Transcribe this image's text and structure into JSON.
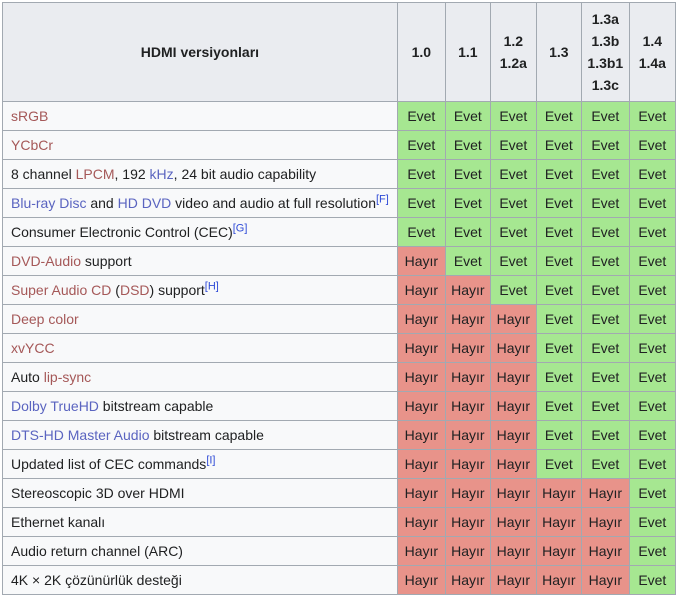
{
  "table": {
    "corner_header": "HDMI versiyonları",
    "version_columns": [
      {
        "lines": [
          "1.0"
        ]
      },
      {
        "lines": [
          "1.1"
        ]
      },
      {
        "lines": [
          "1.2",
          "1.2a"
        ]
      },
      {
        "lines": [
          "1.3"
        ]
      },
      {
        "lines": [
          "1.3a",
          "1.3b",
          "1.3b1",
          "1.3c"
        ]
      },
      {
        "lines": [
          "1.4",
          "1.4a"
        ]
      }
    ],
    "yes_label": "Evet",
    "no_label": "Hayır",
    "rows": [
      {
        "label_segments": [
          {
            "text": "sRGB",
            "style": "red-link"
          }
        ],
        "values": [
          "yes",
          "yes",
          "yes",
          "yes",
          "yes",
          "yes"
        ]
      },
      {
        "label_segments": [
          {
            "text": "YCbCr",
            "style": "red-link"
          }
        ],
        "values": [
          "yes",
          "yes",
          "yes",
          "yes",
          "yes",
          "yes"
        ]
      },
      {
        "label_segments": [
          {
            "text": "8 channel ",
            "style": "text"
          },
          {
            "text": "LPCM",
            "style": "red-link"
          },
          {
            "text": ", 192 ",
            "style": "text"
          },
          {
            "text": "kHz",
            "style": "blue-link"
          },
          {
            "text": ", 24 bit audio capability",
            "style": "text"
          }
        ],
        "values": [
          "yes",
          "yes",
          "yes",
          "yes",
          "yes",
          "yes"
        ]
      },
      {
        "label_segments": [
          {
            "text": "Blu-ray Disc",
            "style": "blue-link"
          },
          {
            "text": " and ",
            "style": "text"
          },
          {
            "text": "HD DVD",
            "style": "blue-link"
          },
          {
            "text": " video and audio at full resolution",
            "style": "text"
          },
          {
            "text": "[F]",
            "style": "ref"
          }
        ],
        "values": [
          "yes",
          "yes",
          "yes",
          "yes",
          "yes",
          "yes"
        ]
      },
      {
        "label_segments": [
          {
            "text": "Consumer Electronic Control (CEC)",
            "style": "text"
          },
          {
            "text": "[G]",
            "style": "ref"
          }
        ],
        "values": [
          "yes",
          "yes",
          "yes",
          "yes",
          "yes",
          "yes"
        ]
      },
      {
        "label_segments": [
          {
            "text": "DVD-Audio",
            "style": "red-link"
          },
          {
            "text": " support",
            "style": "text"
          }
        ],
        "values": [
          "no",
          "yes",
          "yes",
          "yes",
          "yes",
          "yes"
        ]
      },
      {
        "label_segments": [
          {
            "text": "Super Audio CD",
            "style": "red-link"
          },
          {
            "text": " (",
            "style": "text"
          },
          {
            "text": "DSD",
            "style": "red-link"
          },
          {
            "text": ") support",
            "style": "text"
          },
          {
            "text": "[H]",
            "style": "ref"
          }
        ],
        "values": [
          "no",
          "no",
          "yes",
          "yes",
          "yes",
          "yes"
        ]
      },
      {
        "label_segments": [
          {
            "text": "Deep color",
            "style": "red-link"
          }
        ],
        "values": [
          "no",
          "no",
          "no",
          "yes",
          "yes",
          "yes"
        ]
      },
      {
        "label_segments": [
          {
            "text": "xvYCC",
            "style": "red-link"
          }
        ],
        "values": [
          "no",
          "no",
          "no",
          "yes",
          "yes",
          "yes"
        ]
      },
      {
        "label_segments": [
          {
            "text": "Auto ",
            "style": "text"
          },
          {
            "text": "lip-sync",
            "style": "red-link"
          }
        ],
        "values": [
          "no",
          "no",
          "no",
          "yes",
          "yes",
          "yes"
        ]
      },
      {
        "label_segments": [
          {
            "text": "Dolby TrueHD",
            "style": "blue-link"
          },
          {
            "text": " bitstream capable",
            "style": "text"
          }
        ],
        "values": [
          "no",
          "no",
          "no",
          "yes",
          "yes",
          "yes"
        ]
      },
      {
        "label_segments": [
          {
            "text": "DTS-HD Master Audio",
            "style": "blue-link"
          },
          {
            "text": " bitstream capable",
            "style": "text"
          }
        ],
        "values": [
          "no",
          "no",
          "no",
          "yes",
          "yes",
          "yes"
        ]
      },
      {
        "label_segments": [
          {
            "text": "Updated list of CEC commands",
            "style": "text"
          },
          {
            "text": "[I]",
            "style": "ref"
          }
        ],
        "values": [
          "no",
          "no",
          "no",
          "yes",
          "yes",
          "yes"
        ]
      },
      {
        "label_segments": [
          {
            "text": "Stereoscopic 3D over HDMI",
            "style": "text"
          }
        ],
        "values": [
          "no",
          "no",
          "no",
          "no",
          "no",
          "yes"
        ]
      },
      {
        "label_segments": [
          {
            "text": "Ethernet kanalı",
            "style": "text"
          }
        ],
        "values": [
          "no",
          "no",
          "no",
          "no",
          "no",
          "yes"
        ]
      },
      {
        "label_segments": [
          {
            "text": "Audio return channel (ARC)",
            "style": "text"
          }
        ],
        "values": [
          "no",
          "no",
          "no",
          "no",
          "no",
          "yes"
        ]
      },
      {
        "label_segments": [
          {
            "text": "4K × 2K çözünürlük desteği",
            "style": "text"
          }
        ],
        "values": [
          "no",
          "no",
          "no",
          "no",
          "no",
          "yes"
        ]
      }
    ],
    "colors": {
      "yes_bg": "#a6e791",
      "no_bg": "#e8938a",
      "header_bg": "#eaecf0",
      "label_cell_bg": "#f8f9fa",
      "border": "#a2a9b1",
      "red_link": "#a55858",
      "blue_link": "#5a64c0",
      "footnote_link": "#2f4bd7",
      "text": "#202122"
    }
  }
}
